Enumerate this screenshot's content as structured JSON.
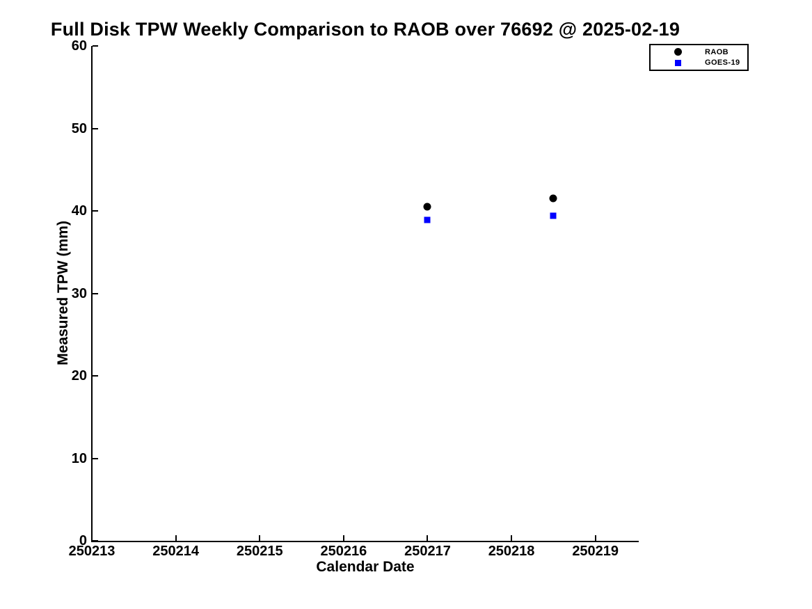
{
  "colors": {
    "background": "#ffffff",
    "axis": "#000000",
    "raob": "#000000",
    "goes19": "#0000ff"
  },
  "chart_data": {
    "type": "scatter",
    "title": "Full Disk TPW Weekly Comparison to RAOB over 76692 @ 2025-02-19",
    "xlabel": "Calendar Date",
    "ylabel": "Measured TPW (mm)",
    "xlim": [
      250213,
      250219.5
    ],
    "ylim": [
      0,
      60
    ],
    "grid": false,
    "tick_direction": "in",
    "x_ticks": [
      {
        "value": 250213,
        "label": "250213"
      },
      {
        "value": 250214,
        "label": "250214"
      },
      {
        "value": 250215,
        "label": "250215"
      },
      {
        "value": 250216,
        "label": "250216"
      },
      {
        "value": 250217,
        "label": "250217"
      },
      {
        "value": 250218,
        "label": "250218"
      },
      {
        "value": 250219,
        "label": "250219"
      }
    ],
    "y_ticks": [
      {
        "value": 0,
        "label": "0"
      },
      {
        "value": 10,
        "label": "10"
      },
      {
        "value": 20,
        "label": "20"
      },
      {
        "value": 30,
        "label": "30"
      },
      {
        "value": 40,
        "label": "40"
      },
      {
        "value": 50,
        "label": "50"
      },
      {
        "value": 60,
        "label": "60"
      }
    ],
    "legend": {
      "position": "top-right",
      "border_color": "#000000",
      "background": "#ffffff"
    },
    "series": [
      {
        "name": "RAOB",
        "marker": "circle",
        "color": "#000000",
        "marker_size": 11,
        "points": [
          {
            "x": 250217.0,
            "y": 40.5
          },
          {
            "x": 250218.5,
            "y": 41.5
          }
        ]
      },
      {
        "name": "GOES-19",
        "marker": "square",
        "color": "#0000ff",
        "marker_size": 9,
        "points": [
          {
            "x": 250217.0,
            "y": 38.9
          },
          {
            "x": 250218.5,
            "y": 39.4
          }
        ]
      }
    ]
  }
}
